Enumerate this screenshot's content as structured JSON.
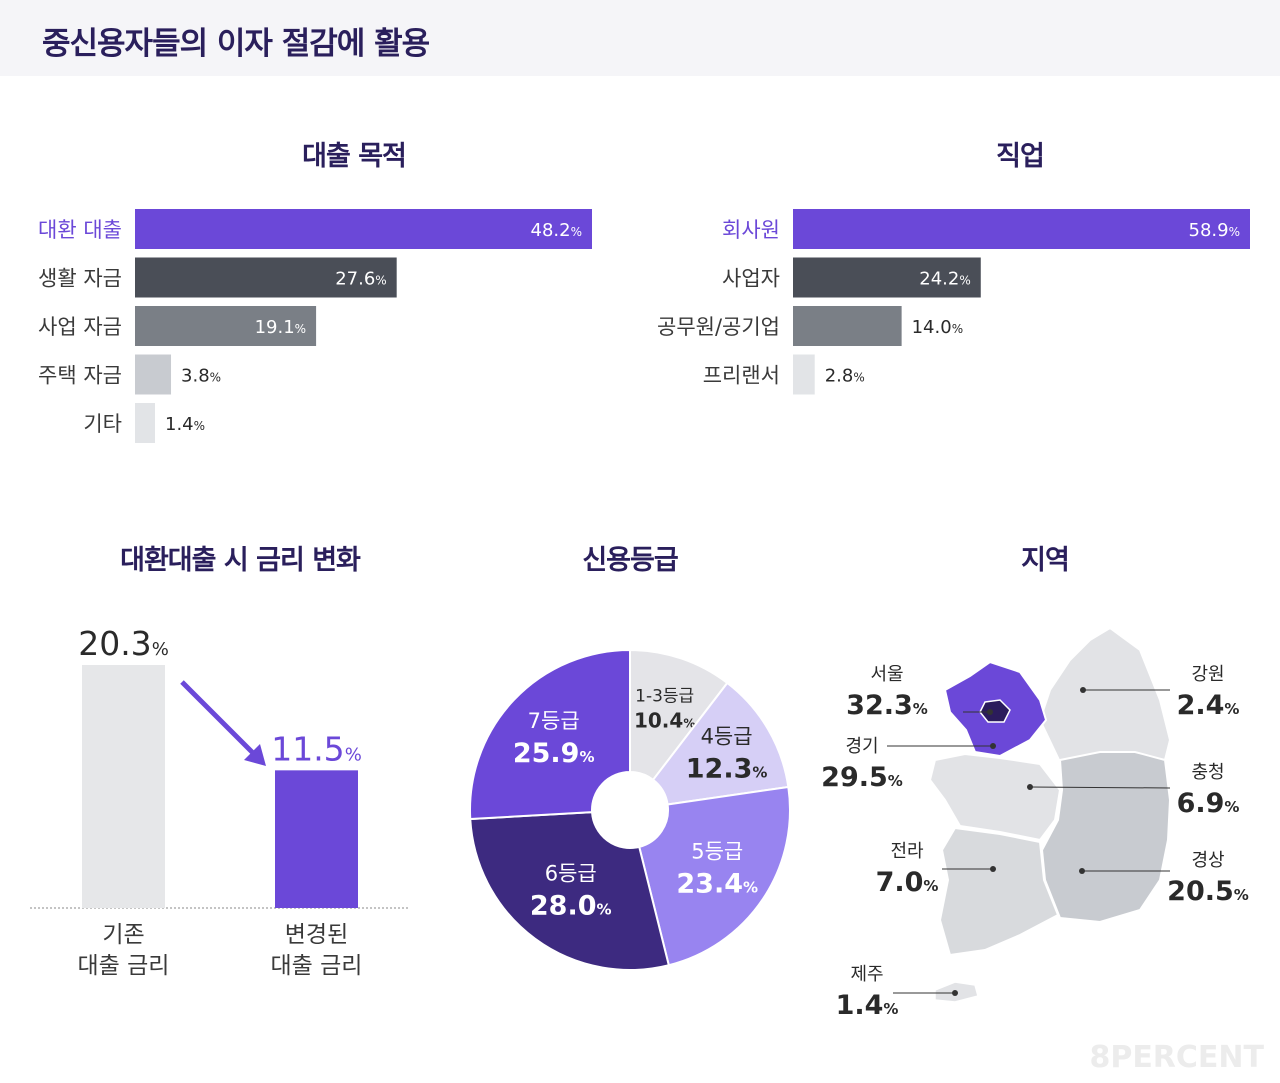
{
  "page": {
    "title": "중신용자들의 이자 절감에 활용",
    "watermark": "8PERCENT",
    "colors": {
      "accent": "#6b48d8",
      "dark": "#4a4e57",
      "mid": "#7a7f86",
      "light": "#c8cbd0",
      "lighter": "#e2e4e7",
      "title": "#2a1f5c"
    }
  },
  "chart_data": [
    {
      "id": "loan_purpose",
      "type": "bar",
      "orientation": "horizontal",
      "title": "대출 목적",
      "unit": "%",
      "categories": [
        "대환 대출",
        "생활 자금",
        "사업 자금",
        "주택 자금",
        "기타"
      ],
      "values": [
        48.2,
        27.6,
        19.1,
        3.8,
        1.4
      ],
      "bar_colors": [
        "#6b48d8",
        "#4a4e57",
        "#7a7f86",
        "#c8cbd0",
        "#e2e4e7"
      ],
      "xlim": [
        0,
        48.2
      ]
    },
    {
      "id": "occupation",
      "type": "bar",
      "orientation": "horizontal",
      "title": "직업",
      "unit": "%",
      "categories": [
        "회사원",
        "사업자",
        "공무원/공기업",
        "프리랜서"
      ],
      "values": [
        58.9,
        24.2,
        14.0,
        2.8
      ],
      "bar_colors": [
        "#6b48d8",
        "#4a4e57",
        "#7a7f86",
        "#e2e4e7"
      ],
      "xlim": [
        0,
        58.9
      ]
    },
    {
      "id": "rate_change",
      "type": "bar",
      "title": "대환대출 시 금리 변화",
      "unit": "%",
      "categories": [
        "기존\n대출 금리",
        "변경된\n대출 금리"
      ],
      "category_lines": [
        [
          "기존",
          "대출 금리"
        ],
        [
          "변경된",
          "대출 금리"
        ]
      ],
      "values": [
        20.3,
        11.5
      ],
      "bar_colors": [
        "#e6e7e9",
        "#6b48d8"
      ],
      "ylim": [
        0,
        20.3
      ]
    },
    {
      "id": "credit_grade",
      "type": "pie",
      "donut": true,
      "title": "신용등급",
      "unit": "%",
      "labels": [
        "1-3등급",
        "4등급",
        "5등급",
        "6등급",
        "7등급"
      ],
      "values": [
        10.4,
        12.3,
        23.4,
        28.0,
        25.9
      ],
      "colors": [
        "#e4e4e8",
        "#d6cff6",
        "#9884f0",
        "#3d2a80",
        "#6b48d8"
      ],
      "label_colors": [
        "#2a2a2a",
        "#2a2a2a",
        "#ffffff",
        "#ffffff",
        "#ffffff"
      ]
    },
    {
      "id": "region",
      "type": "table",
      "title": "지역",
      "unit": "%",
      "labels": [
        "서울",
        "경기",
        "강원",
        "충청",
        "전라",
        "경상",
        "제주"
      ],
      "values": [
        32.3,
        29.5,
        2.4,
        6.9,
        7.0,
        20.5,
        1.4
      ]
    }
  ]
}
